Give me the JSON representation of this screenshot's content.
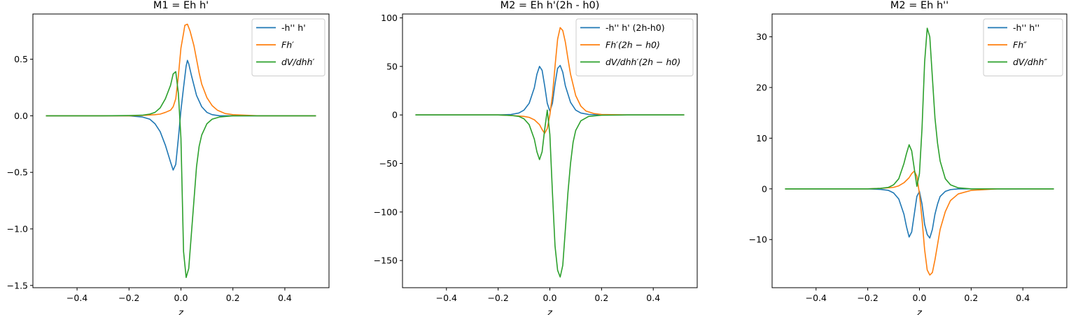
{
  "chart_data": [
    {
      "type": "line",
      "title": "M1 = Eh h'",
      "xlabel": "z",
      "ylabel": "",
      "xlim": [
        -0.57,
        0.57
      ],
      "ylim": [
        -1.52,
        0.9
      ],
      "xticks": [
        -0.4,
        -0.2,
        0.0,
        0.2,
        0.4
      ],
      "xtick_labels": [
        "−0.4",
        "−0.2",
        "0.0",
        "0.2",
        "0.4"
      ],
      "yticks": [
        0.5,
        0.0,
        -0.5,
        -1.0,
        -1.5
      ],
      "ytick_labels": [
        "0.5",
        "0.0",
        "−0.5",
        "−1.0",
        "−1.5"
      ],
      "legend_position": "top-right",
      "grid": false,
      "series": [
        {
          "name": "-h'' h'",
          "color": "#1f77b4",
          "points": [
            [
              -0.52,
              0
            ],
            [
              -0.3,
              0
            ],
            [
              -0.2,
              0
            ],
            [
              -0.15,
              -0.01
            ],
            [
              -0.12,
              -0.03
            ],
            [
              -0.1,
              -0.07
            ],
            [
              -0.08,
              -0.14
            ],
            [
              -0.06,
              -0.26
            ],
            [
              -0.04,
              -0.41
            ],
            [
              -0.03,
              -0.48
            ],
            [
              -0.02,
              -0.43
            ],
            [
              -0.01,
              -0.2
            ],
            [
              0.0,
              0.05
            ],
            [
              0.01,
              0.25
            ],
            [
              0.02,
              0.44
            ],
            [
              0.025,
              0.49
            ],
            [
              0.03,
              0.46
            ],
            [
              0.04,
              0.36
            ],
            [
              0.06,
              0.18
            ],
            [
              0.08,
              0.08
            ],
            [
              0.1,
              0.03
            ],
            [
              0.12,
              0.01
            ],
            [
              0.15,
              0
            ],
            [
              0.2,
              0
            ],
            [
              0.3,
              0
            ],
            [
              0.52,
              0
            ]
          ]
        },
        {
          "name": "Fh′",
          "color": "#ff7f0e",
          "points": [
            [
              -0.52,
              0
            ],
            [
              -0.3,
              0
            ],
            [
              -0.2,
              0
            ],
            [
              -0.15,
              0.003
            ],
            [
              -0.1,
              0.01
            ],
            [
              -0.08,
              0.015
            ],
            [
              -0.06,
              0.03
            ],
            [
              -0.04,
              0.05
            ],
            [
              -0.03,
              0.08
            ],
            [
              -0.02,
              0.15
            ],
            [
              -0.01,
              0.35
            ],
            [
              0.0,
              0.6
            ],
            [
              0.01,
              0.73
            ],
            [
              0.015,
              0.8
            ],
            [
              0.025,
              0.81
            ],
            [
              0.035,
              0.75
            ],
            [
              0.05,
              0.62
            ],
            [
              0.06,
              0.5
            ],
            [
              0.07,
              0.38
            ],
            [
              0.08,
              0.28
            ],
            [
              0.1,
              0.16
            ],
            [
              0.12,
              0.09
            ],
            [
              0.14,
              0.05
            ],
            [
              0.17,
              0.02
            ],
            [
              0.2,
              0.01
            ],
            [
              0.3,
              0
            ],
            [
              0.52,
              0
            ]
          ]
        },
        {
          "name": "dV/dhh′",
          "color": "#2ca02c",
          "points": [
            [
              -0.52,
              0
            ],
            [
              -0.3,
              0
            ],
            [
              -0.2,
              0.002
            ],
            [
              -0.15,
              0.005
            ],
            [
              -0.12,
              0.015
            ],
            [
              -0.1,
              0.03
            ],
            [
              -0.08,
              0.07
            ],
            [
              -0.06,
              0.15
            ],
            [
              -0.04,
              0.27
            ],
            [
              -0.03,
              0.37
            ],
            [
              -0.02,
              0.39
            ],
            [
              -0.01,
              0.2
            ],
            [
              0.0,
              -0.2
            ],
            [
              0.005,
              -0.7
            ],
            [
              0.01,
              -1.2
            ],
            [
              0.02,
              -1.43
            ],
            [
              0.03,
              -1.35
            ],
            [
              0.04,
              -1.05
            ],
            [
              0.05,
              -0.75
            ],
            [
              0.06,
              -0.45
            ],
            [
              0.07,
              -0.27
            ],
            [
              0.08,
              -0.17
            ],
            [
              0.1,
              -0.07
            ],
            [
              0.12,
              -0.03
            ],
            [
              0.15,
              -0.01
            ],
            [
              0.2,
              0
            ],
            [
              0.3,
              0
            ],
            [
              0.52,
              0
            ]
          ]
        }
      ]
    },
    {
      "type": "line",
      "title": "M2 = Eh h'(2h - h0)",
      "xlabel": "z",
      "ylabel": "",
      "xlim": [
        -0.57,
        0.57
      ],
      "ylim": [
        -178,
        104
      ],
      "xticks": [
        -0.4,
        -0.2,
        0.0,
        0.2,
        0.4
      ],
      "xtick_labels": [
        "−0.4",
        "−0.2",
        "0.0",
        "0.2",
        "0.4"
      ],
      "yticks": [
        100,
        50,
        0,
        -50,
        -100,
        -150
      ],
      "ytick_labels": [
        "100",
        "50",
        "0",
        "−50",
        "−100",
        "−150"
      ],
      "legend_position": "top-right",
      "grid": false,
      "series": [
        {
          "name": "-h'' h' (2h-h0)",
          "color": "#1f77b4",
          "points": [
            [
              -0.52,
              0
            ],
            [
              -0.3,
              0
            ],
            [
              -0.2,
              0
            ],
            [
              -0.15,
              0.5
            ],
            [
              -0.12,
              2
            ],
            [
              -0.1,
              5
            ],
            [
              -0.08,
              12
            ],
            [
              -0.06,
              28
            ],
            [
              -0.05,
              42
            ],
            [
              -0.04,
              50
            ],
            [
              -0.03,
              46
            ],
            [
              -0.02,
              30
            ],
            [
              -0.01,
              12
            ],
            [
              0.0,
              4
            ],
            [
              0.01,
              12
            ],
            [
              0.02,
              32
            ],
            [
              0.03,
              48
            ],
            [
              0.04,
              51
            ],
            [
              0.05,
              44
            ],
            [
              0.06,
              30
            ],
            [
              0.08,
              13
            ],
            [
              0.1,
              5
            ],
            [
              0.12,
              2
            ],
            [
              0.15,
              0.5
            ],
            [
              0.2,
              0
            ],
            [
              0.3,
              0
            ],
            [
              0.52,
              0
            ]
          ]
        },
        {
          "name": "Fh′(2h − h0)",
          "color": "#ff7f0e",
          "points": [
            [
              -0.52,
              0
            ],
            [
              -0.3,
              0
            ],
            [
              -0.2,
              0
            ],
            [
              -0.15,
              -0.5
            ],
            [
              -0.1,
              -1.5
            ],
            [
              -0.08,
              -2.5
            ],
            [
              -0.06,
              -5
            ],
            [
              -0.04,
              -10
            ],
            [
              -0.03,
              -15
            ],
            [
              -0.02,
              -19
            ],
            [
              -0.01,
              -14
            ],
            [
              0.0,
              0
            ],
            [
              0.01,
              20
            ],
            [
              0.02,
              50
            ],
            [
              0.03,
              78
            ],
            [
              0.04,
              90
            ],
            [
              0.05,
              87
            ],
            [
              0.06,
              75
            ],
            [
              0.07,
              58
            ],
            [
              0.08,
              42
            ],
            [
              0.1,
              20
            ],
            [
              0.12,
              9
            ],
            [
              0.14,
              4
            ],
            [
              0.17,
              1.5
            ],
            [
              0.2,
              0.5
            ],
            [
              0.3,
              0
            ],
            [
              0.52,
              0
            ]
          ]
        },
        {
          "name": "dV/dhh′(2h − h0)",
          "color": "#2ca02c",
          "points": [
            [
              -0.52,
              0
            ],
            [
              -0.3,
              0
            ],
            [
              -0.2,
              0
            ],
            [
              -0.15,
              -0.5
            ],
            [
              -0.12,
              -1.5
            ],
            [
              -0.1,
              -4
            ],
            [
              -0.08,
              -10
            ],
            [
              -0.06,
              -25
            ],
            [
              -0.05,
              -38
            ],
            [
              -0.04,
              -46
            ],
            [
              -0.03,
              -38
            ],
            [
              -0.02,
              -15
            ],
            [
              -0.01,
              5
            ],
            [
              0.0,
              -20
            ],
            [
              0.01,
              -80
            ],
            [
              0.02,
              -135
            ],
            [
              0.03,
              -160
            ],
            [
              0.04,
              -167
            ],
            [
              0.05,
              -155
            ],
            [
              0.06,
              -118
            ],
            [
              0.07,
              -80
            ],
            [
              0.08,
              -50
            ],
            [
              0.09,
              -28
            ],
            [
              0.1,
              -16
            ],
            [
              0.12,
              -6
            ],
            [
              0.15,
              -1.5
            ],
            [
              0.2,
              -0.3
            ],
            [
              0.3,
              0
            ],
            [
              0.52,
              0
            ]
          ]
        }
      ]
    },
    {
      "type": "line",
      "title": "M2 = Eh h''",
      "xlabel": "z",
      "ylabel": "",
      "xlim": [
        -0.57,
        0.57
      ],
      "ylim": [
        -19.5,
        34.5
      ],
      "xticks": [
        -0.4,
        -0.2,
        0.0,
        0.2,
        0.4
      ],
      "xtick_labels": [
        "−0.4",
        "−0.2",
        "0.0",
        "0.2",
        "0.4"
      ],
      "yticks": [
        30,
        20,
        10,
        0,
        -10
      ],
      "ytick_labels": [
        "30",
        "20",
        "10",
        "0",
        "−10"
      ],
      "legend_position": "top-right",
      "grid": false,
      "series": [
        {
          "name": "-h'' h''",
          "color": "#1f77b4",
          "points": [
            [
              -0.52,
              0
            ],
            [
              -0.3,
              0
            ],
            [
              -0.2,
              0
            ],
            [
              -0.15,
              -0.1
            ],
            [
              -0.12,
              -0.3
            ],
            [
              -0.1,
              -0.8
            ],
            [
              -0.08,
              -2
            ],
            [
              -0.06,
              -5
            ],
            [
              -0.05,
              -7.5
            ],
            [
              -0.04,
              -9.5
            ],
            [
              -0.03,
              -8.5
            ],
            [
              -0.02,
              -5
            ],
            [
              -0.01,
              -1.5
            ],
            [
              0.0,
              -0.5
            ],
            [
              0.01,
              -3
            ],
            [
              0.02,
              -7
            ],
            [
              0.03,
              -9
            ],
            [
              0.04,
              -9.7
            ],
            [
              0.05,
              -8
            ],
            [
              0.06,
              -5
            ],
            [
              0.07,
              -3
            ],
            [
              0.08,
              -1.5
            ],
            [
              0.1,
              -0.5
            ],
            [
              0.12,
              -0.15
            ],
            [
              0.15,
              0
            ],
            [
              0.2,
              0
            ],
            [
              0.3,
              0
            ],
            [
              0.52,
              0
            ]
          ]
        },
        {
          "name": "Fh″",
          "color": "#ff7f0e",
          "points": [
            [
              -0.52,
              0
            ],
            [
              -0.3,
              0
            ],
            [
              -0.2,
              0
            ],
            [
              -0.15,
              0.1
            ],
            [
              -0.1,
              0.3
            ],
            [
              -0.08,
              0.6
            ],
            [
              -0.06,
              1.2
            ],
            [
              -0.04,
              2.2
            ],
            [
              -0.03,
              3
            ],
            [
              -0.02,
              3.5
            ],
            [
              -0.01,
              2.5
            ],
            [
              0.0,
              -1
            ],
            [
              0.01,
              -6
            ],
            [
              0.02,
              -12
            ],
            [
              0.03,
              -16
            ],
            [
              0.04,
              -17
            ],
            [
              0.05,
              -16.5
            ],
            [
              0.06,
              -14
            ],
            [
              0.07,
              -11
            ],
            [
              0.08,
              -8
            ],
            [
              0.1,
              -4.5
            ],
            [
              0.12,
              -2.3
            ],
            [
              0.15,
              -1
            ],
            [
              0.2,
              -0.3
            ],
            [
              0.3,
              0
            ],
            [
              0.52,
              0
            ]
          ]
        },
        {
          "name": "dV/dhh″",
          "color": "#2ca02c",
          "points": [
            [
              -0.52,
              0
            ],
            [
              -0.3,
              0
            ],
            [
              -0.2,
              0
            ],
            [
              -0.15,
              0.1
            ],
            [
              -0.12,
              0.3
            ],
            [
              -0.1,
              0.8
            ],
            [
              -0.08,
              2
            ],
            [
              -0.06,
              5
            ],
            [
              -0.05,
              7
            ],
            [
              -0.04,
              8.7
            ],
            [
              -0.03,
              7.5
            ],
            [
              -0.02,
              4
            ],
            [
              -0.01,
              0.5
            ],
            [
              0.0,
              3
            ],
            [
              0.01,
              12
            ],
            [
              0.02,
              25
            ],
            [
              0.03,
              31.7
            ],
            [
              0.04,
              30
            ],
            [
              0.05,
              22
            ],
            [
              0.06,
              14
            ],
            [
              0.07,
              9
            ],
            [
              0.08,
              5.5
            ],
            [
              0.1,
              2
            ],
            [
              0.12,
              0.8
            ],
            [
              0.15,
              0.2
            ],
            [
              0.2,
              0
            ],
            [
              0.3,
              0
            ],
            [
              0.52,
              0
            ]
          ]
        }
      ]
    }
  ]
}
